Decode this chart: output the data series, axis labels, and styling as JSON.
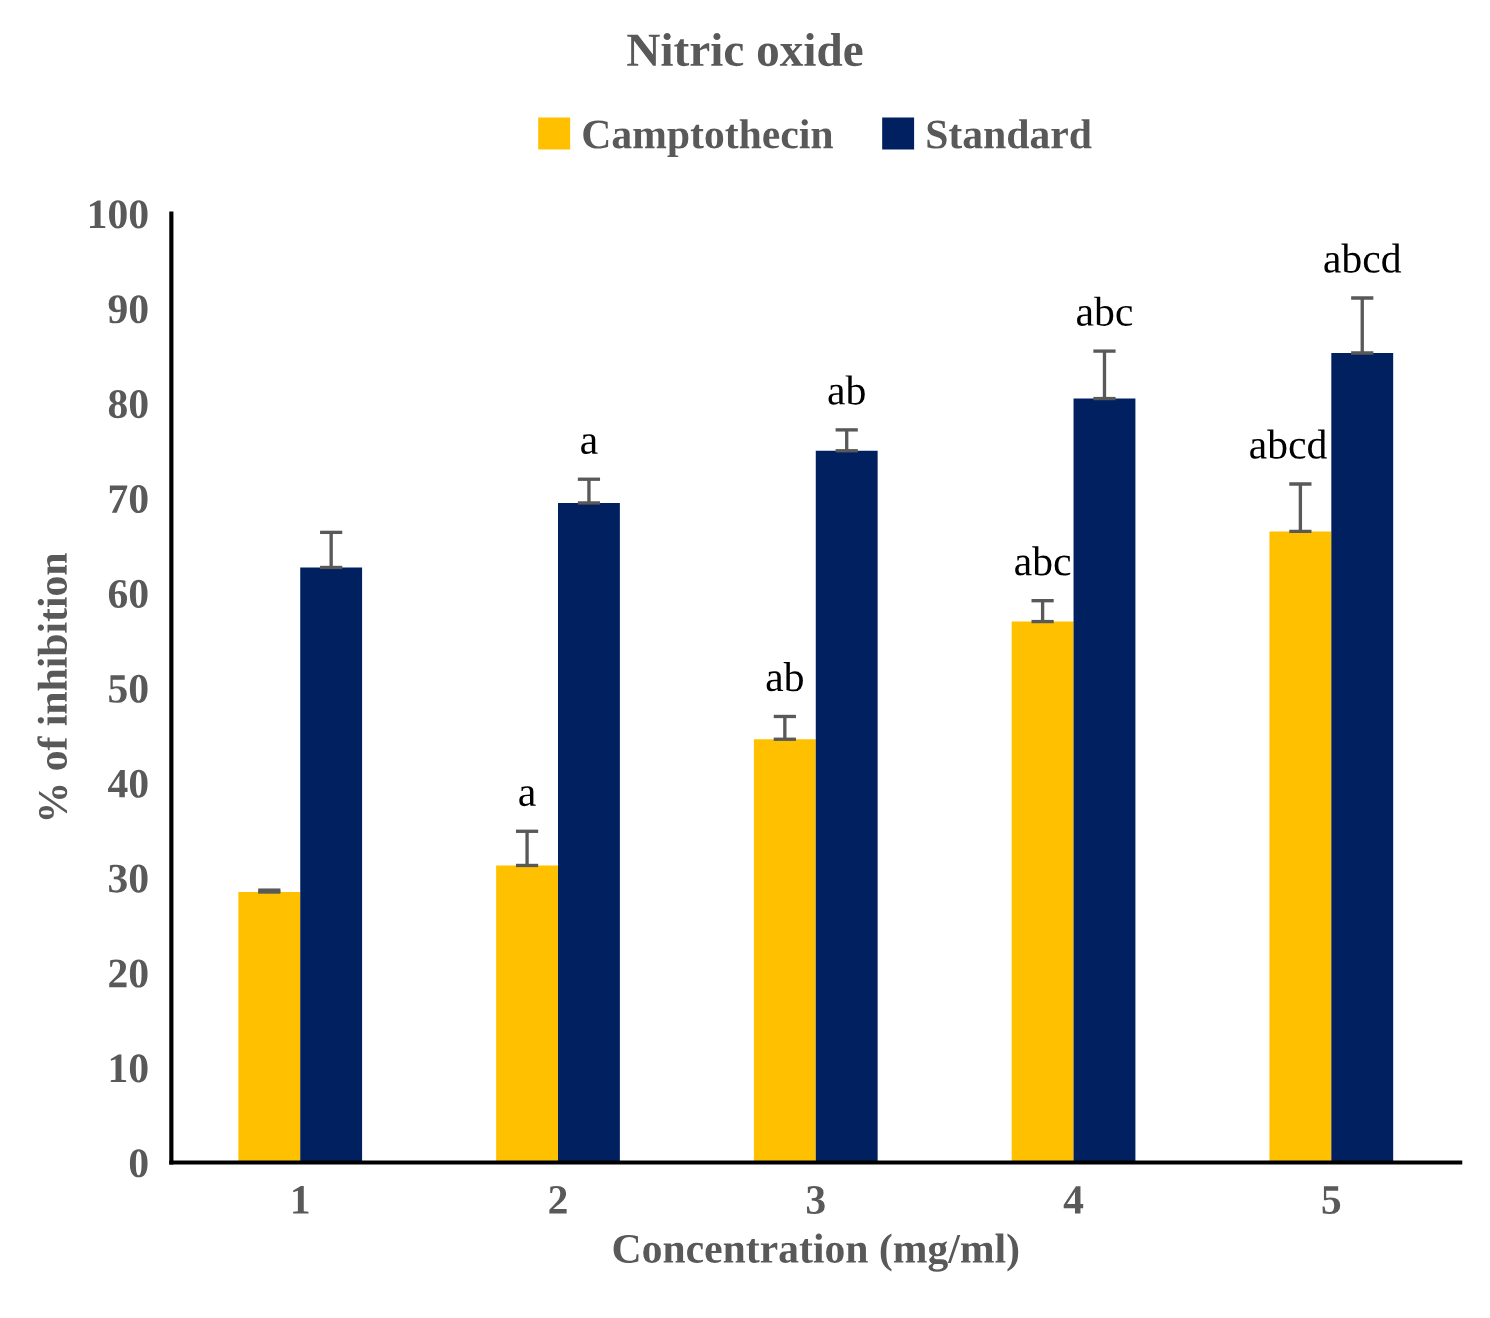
{
  "chart_data": {
    "type": "bar",
    "title": "Nitric oxide",
    "xlabel": "Concentration (mg/ml)",
    "ylabel": "% of inhibition",
    "categories": [
      "1",
      "2",
      "3",
      "4",
      "5"
    ],
    "series": [
      {
        "name": "Camptothecin",
        "color": "#ffc000",
        "values": [
          28.5,
          31.3,
          44.6,
          57,
          66.5
        ],
        "errors": [
          0.2,
          3.6,
          2.4,
          2.2,
          5
        ],
        "value_labels": [
          null,
          "a",
          "ab",
          "abc",
          "abcd"
        ]
      },
      {
        "name": "Standard",
        "color": "#002060",
        "values": [
          62.7,
          69.5,
          75,
          80.5,
          85.3
        ],
        "errors": [
          3.7,
          2.5,
          2.2,
          5,
          5.8
        ],
        "value_labels": [
          null,
          "a",
          "ab",
          "abc",
          "abcd"
        ]
      }
    ],
    "ylim": [
      0,
      100
    ],
    "yticks": [
      0,
      10,
      20,
      30,
      40,
      50,
      60,
      70,
      80,
      90,
      100
    ],
    "grid": false,
    "legend": "top"
  }
}
